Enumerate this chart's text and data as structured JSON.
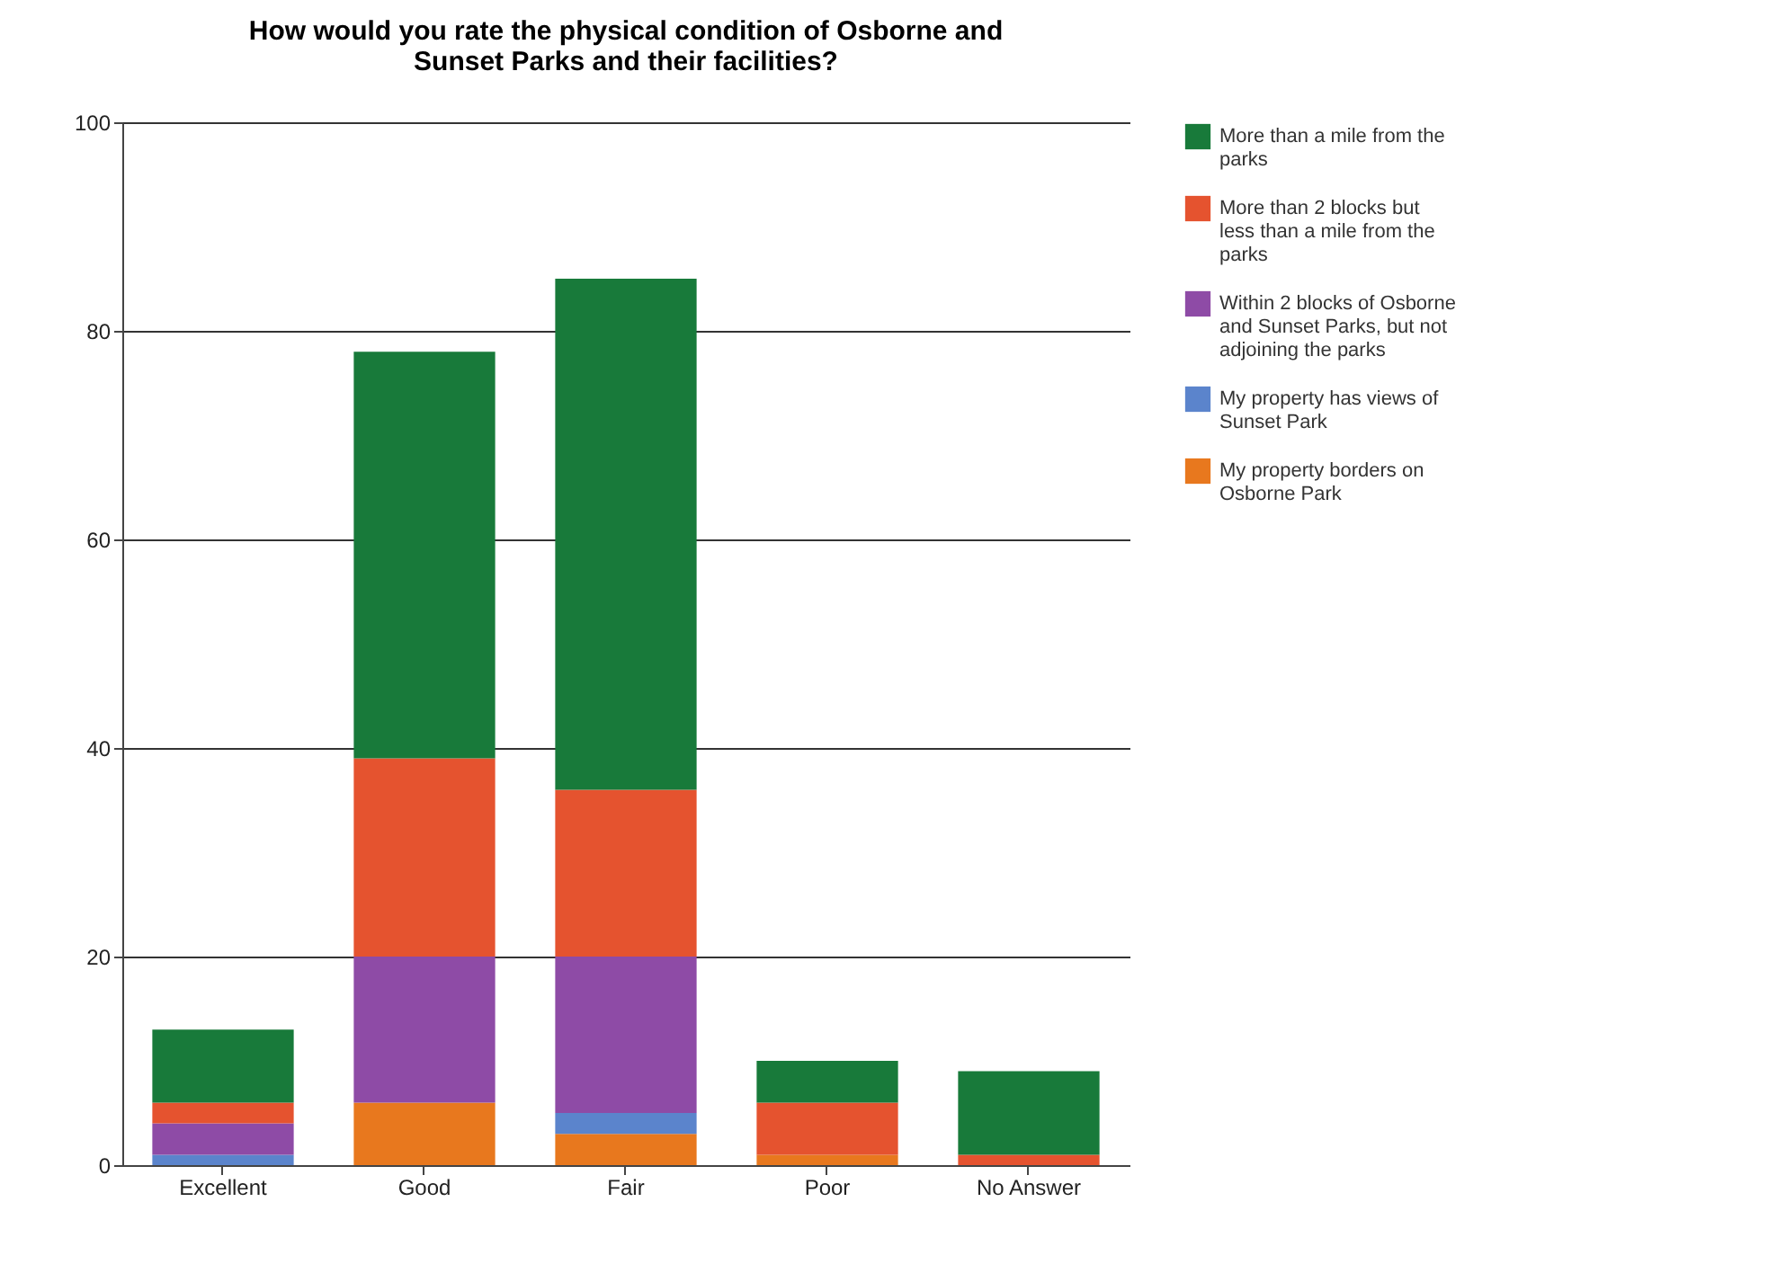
{
  "chart_data": {
    "type": "bar",
    "stacked": true,
    "title": "How would you rate the physical condition of Osborne and Sunset Parks and their facilities?",
    "categories": [
      "Excellent",
      "Good",
      "Fair",
      "Poor",
      "No Answer"
    ],
    "series": [
      {
        "name": "My property borders on Osborne Park",
        "color": "#e8781e",
        "values": [
          0,
          6,
          3,
          1,
          0
        ]
      },
      {
        "name": "My property has views of Sunset Park",
        "color": "#5b84cc",
        "values": [
          1,
          0,
          2,
          0,
          0
        ]
      },
      {
        "name": "Within 2 blocks of Osborne and Sunset Parks, but not adjoining the parks",
        "color": "#8e4ba6",
        "values": [
          3,
          14,
          15,
          0,
          0
        ]
      },
      {
        "name": "More than 2 blocks but less than a mile from the parks",
        "color": "#e5532f",
        "values": [
          2,
          19,
          16,
          5,
          1
        ]
      },
      {
        "name": "More than a mile from the parks",
        "color": "#187a3a",
        "values": [
          7,
          39,
          49,
          4,
          8
        ]
      }
    ],
    "ylim": [
      0,
      100
    ],
    "yticks": [
      0,
      20,
      40,
      60,
      80,
      100
    ],
    "grid": "y",
    "legend": "right"
  }
}
